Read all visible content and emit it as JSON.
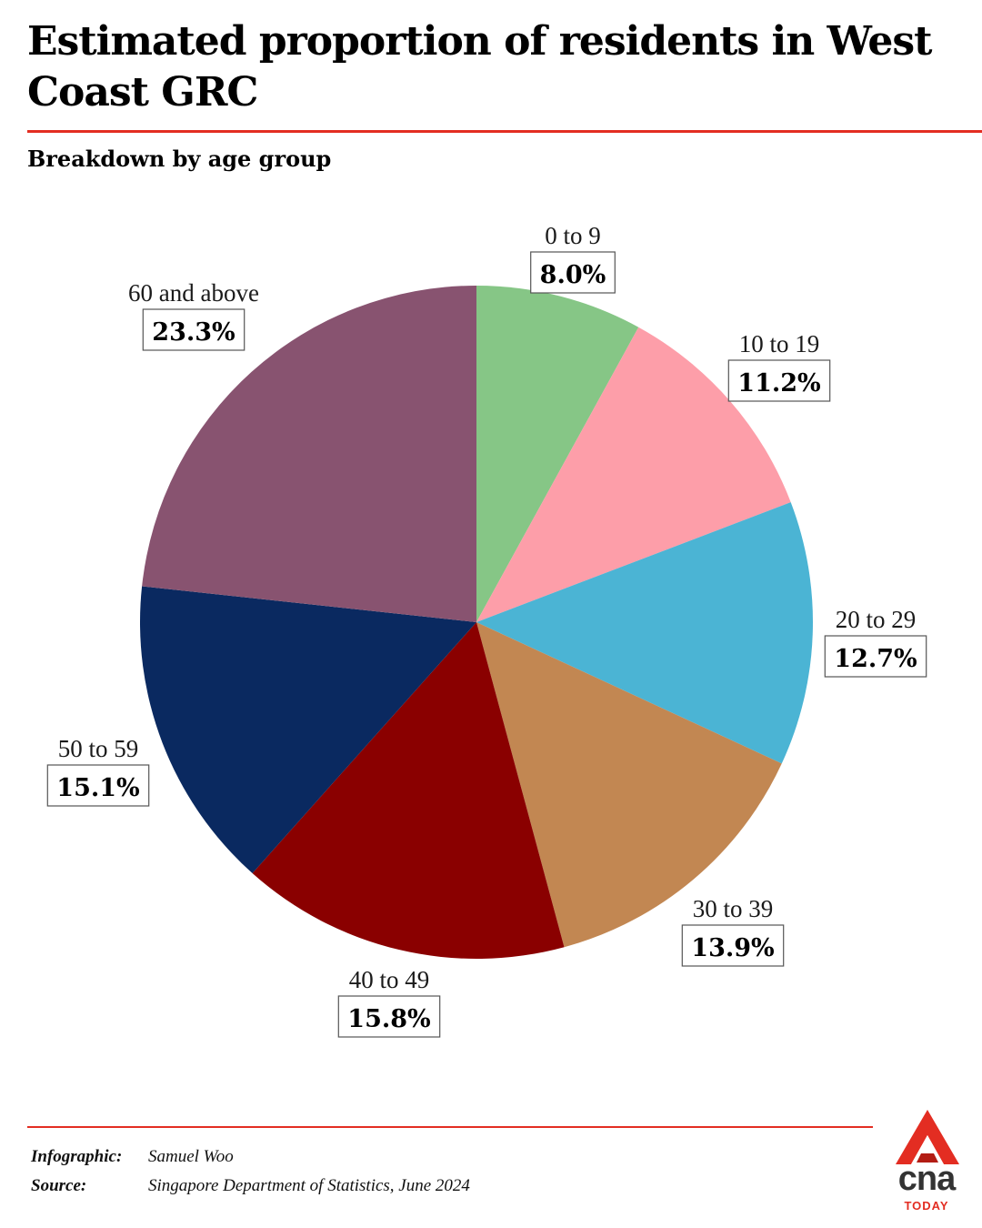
{
  "header": {
    "title": "Estimated proportion of residents in West Coast GRC",
    "subtitle": "Breakdown by age group"
  },
  "chart_data": {
    "type": "pie",
    "title": "Estimated proportion of residents in West Coast GRC",
    "subtitle": "Breakdown by age group",
    "slices": [
      {
        "label": "0 to 9",
        "value": 8.0,
        "display": "8.0%",
        "color": "#86c686"
      },
      {
        "label": "10 to 19",
        "value": 11.2,
        "display": "11.2%",
        "color": "#fd9ea9"
      },
      {
        "label": "20 to 29",
        "value": 12.7,
        "display": "12.7%",
        "color": "#4bb4d4"
      },
      {
        "label": "30 to 39",
        "value": 13.9,
        "display": "13.9%",
        "color": "#c28752"
      },
      {
        "label": "40 to 49",
        "value": 15.8,
        "display": "15.8%",
        "color": "#8a0000"
      },
      {
        "label": "50 to 59",
        "value": 15.1,
        "display": "15.1%",
        "color": "#0a2960"
      },
      {
        "label": "60 and above",
        "value": 23.3,
        "display": "23.3%",
        "color": "#885370"
      }
    ]
  },
  "footer": {
    "infographic_label": "Infographic:",
    "infographic_value": "Samuel Woo",
    "source_label": "Source:",
    "source_value": "Singapore Department of Statistics, June 2024",
    "brand": "cna",
    "brand_sub": "TODAY",
    "brand_color": "#e32d22"
  }
}
